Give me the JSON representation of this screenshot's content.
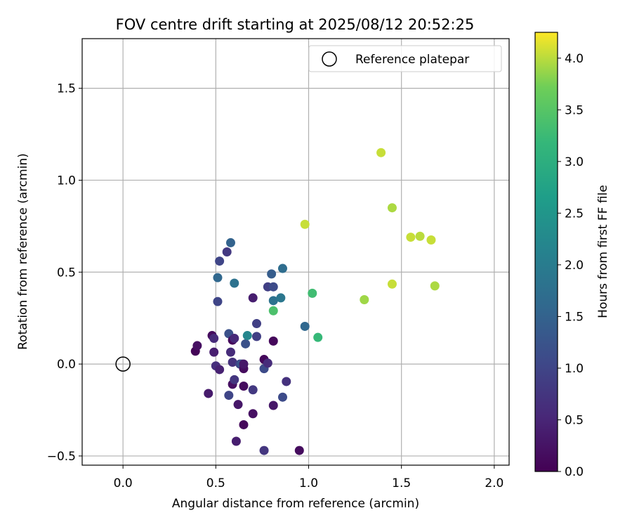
{
  "chart_data": {
    "type": "scatter",
    "title": "FOV centre drift starting at 2025/08/12 20:52:25",
    "xlabel": "Angular distance from reference (arcmin)",
    "ylabel": "Rotation from reference (arcmin)",
    "xlim": [
      -0.22,
      2.08
    ],
    "ylim": [
      -0.55,
      1.77
    ],
    "xticks": [
      "0.0",
      "0.5",
      "1.0",
      "1.5",
      "2.0"
    ],
    "xtick_values": [
      0.0,
      0.5,
      1.0,
      1.5,
      2.0
    ],
    "yticks": [
      "−0.5",
      "0.0",
      "0.5",
      "1.0",
      "1.5"
    ],
    "ytick_values": [
      -0.5,
      0.0,
      0.5,
      1.0,
      1.5
    ],
    "grid": true,
    "legend": {
      "label": "Reference platepar",
      "placement": "top-right"
    },
    "reference_point": {
      "x": 0.0,
      "y": 0.0
    },
    "colorbar": {
      "label": "Hours from first FF file",
      "colormap": "viridis",
      "range": [
        0.0,
        4.25
      ],
      "ticks": [
        "0.0",
        "0.5",
        "1.0",
        "1.5",
        "2.0",
        "2.5",
        "3.0",
        "3.5",
        "4.0"
      ],
      "tick_values": [
        0.0,
        0.5,
        1.0,
        1.5,
        2.0,
        2.5,
        3.0,
        3.5,
        4.0
      ]
    },
    "points": [
      {
        "x": 0.39,
        "y": 0.07,
        "hours": 0.05
      },
      {
        "x": 0.4,
        "y": 0.1,
        "hours": 0.2
      },
      {
        "x": 0.48,
        "y": 0.155,
        "hours": 0.15
      },
      {
        "x": 0.49,
        "y": 0.14,
        "hours": 0.6
      },
      {
        "x": 0.49,
        "y": 0.065,
        "hours": 0.4
      },
      {
        "x": 0.46,
        "y": -0.16,
        "hours": 0.35
      },
      {
        "x": 0.5,
        "y": -0.01,
        "hours": 0.65
      },
      {
        "x": 0.52,
        "y": -0.03,
        "hours": 0.45
      },
      {
        "x": 0.51,
        "y": 0.34,
        "hours": 1.0
      },
      {
        "x": 0.52,
        "y": 0.56,
        "hours": 1.0
      },
      {
        "x": 0.51,
        "y": 0.47,
        "hours": 1.6
      },
      {
        "x": 0.56,
        "y": 0.61,
        "hours": 0.8
      },
      {
        "x": 0.58,
        "y": 0.66,
        "hours": 1.5
      },
      {
        "x": 0.57,
        "y": 0.165,
        "hours": 1.2
      },
      {
        "x": 0.6,
        "y": 0.44,
        "hours": 1.8
      },
      {
        "x": 0.59,
        "y": 0.13,
        "hours": 0.1
      },
      {
        "x": 0.6,
        "y": 0.14,
        "hours": 0.55
      },
      {
        "x": 0.58,
        "y": 0.065,
        "hours": 0.6
      },
      {
        "x": 0.59,
        "y": 0.01,
        "hours": 0.7
      },
      {
        "x": 0.57,
        "y": -0.17,
        "hours": 1.0
      },
      {
        "x": 0.59,
        "y": -0.11,
        "hours": 0.2
      },
      {
        "x": 0.6,
        "y": -0.085,
        "hours": 0.75
      },
      {
        "x": 0.61,
        "y": -0.42,
        "hours": 0.4
      },
      {
        "x": 0.62,
        "y": -0.22,
        "hours": 0.3
      },
      {
        "x": 0.63,
        "y": 0.0,
        "hours": 1.0
      },
      {
        "x": 0.64,
        "y": 0.0,
        "hours": 1.3
      },
      {
        "x": 0.65,
        "y": -0.025,
        "hours": 0.15
      },
      {
        "x": 0.65,
        "y": 0.0,
        "hours": 0.3
      },
      {
        "x": 0.65,
        "y": -0.12,
        "hours": 0.15
      },
      {
        "x": 0.65,
        "y": -0.33,
        "hours": 0.1
      },
      {
        "x": 0.66,
        "y": 0.11,
        "hours": 1.2
      },
      {
        "x": 0.67,
        "y": 0.155,
        "hours": 2.2
      },
      {
        "x": 0.7,
        "y": 0.36,
        "hours": 0.4
      },
      {
        "x": 0.7,
        "y": -0.14,
        "hours": 0.8
      },
      {
        "x": 0.7,
        "y": -0.27,
        "hours": 0.2
      },
      {
        "x": 0.72,
        "y": 0.15,
        "hours": 0.9
      },
      {
        "x": 0.72,
        "y": 0.22,
        "hours": 0.9
      },
      {
        "x": 0.76,
        "y": 0.025,
        "hours": 0.1
      },
      {
        "x": 0.76,
        "y": -0.025,
        "hours": 1.1
      },
      {
        "x": 0.76,
        "y": -0.47,
        "hours": 0.75
      },
      {
        "x": 0.78,
        "y": 0.42,
        "hours": 0.9
      },
      {
        "x": 0.78,
        "y": 0.005,
        "hours": 0.6
      },
      {
        "x": 0.8,
        "y": 0.49,
        "hours": 1.4
      },
      {
        "x": 0.81,
        "y": 0.42,
        "hours": 1.1
      },
      {
        "x": 0.81,
        "y": 0.345,
        "hours": 1.8
      },
      {
        "x": 0.81,
        "y": 0.29,
        "hours": 3.4
      },
      {
        "x": 0.81,
        "y": 0.125,
        "hours": 0.1
      },
      {
        "x": 0.81,
        "y": -0.225,
        "hours": 0.3
      },
      {
        "x": 0.85,
        "y": 0.36,
        "hours": 1.9
      },
      {
        "x": 0.86,
        "y": 0.52,
        "hours": 1.7
      },
      {
        "x": 0.86,
        "y": -0.18,
        "hours": 1.1
      },
      {
        "x": 0.88,
        "y": -0.095,
        "hours": 0.7
      },
      {
        "x": 0.95,
        "y": -0.47,
        "hours": 0.15
      },
      {
        "x": 0.98,
        "y": 0.205,
        "hours": 1.6
      },
      {
        "x": 0.98,
        "y": 0.76,
        "hours": 4.05
      },
      {
        "x": 1.02,
        "y": 0.385,
        "hours": 3.3
      },
      {
        "x": 1.05,
        "y": 0.145,
        "hours": 3.2
      },
      {
        "x": 1.3,
        "y": 0.35,
        "hours": 3.9
      },
      {
        "x": 1.39,
        "y": 1.15,
        "hours": 4.05
      },
      {
        "x": 1.45,
        "y": 0.85,
        "hours": 3.95
      },
      {
        "x": 1.45,
        "y": 0.435,
        "hours": 4.05
      },
      {
        "x": 1.55,
        "y": 0.69,
        "hours": 4.05
      },
      {
        "x": 1.6,
        "y": 0.695,
        "hours": 4.0
      },
      {
        "x": 1.66,
        "y": 0.675,
        "hours": 4.05
      },
      {
        "x": 1.68,
        "y": 0.425,
        "hours": 3.95
      }
    ]
  }
}
